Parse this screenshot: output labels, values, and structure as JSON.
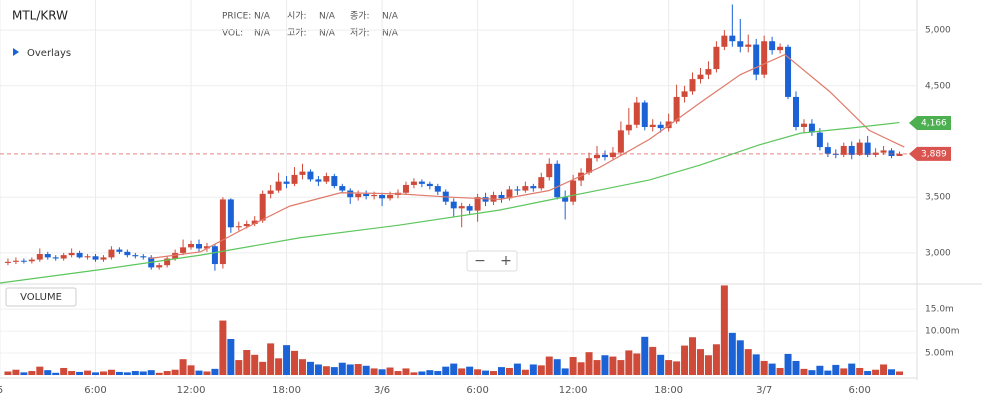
{
  "chart_data": {
    "type": "candlestick",
    "title": "MTL/KRW",
    "info": {
      "labels": [
        "PRICE:",
        "시가:",
        "종가:",
        "VOL:",
        "고가:",
        "저가:"
      ],
      "values": [
        "N/A",
        "N/A",
        "N/A",
        "N/A",
        "N/A",
        "N/A"
      ]
    },
    "overlays_label": "Overlays",
    "volume_label": "VOLUME",
    "zoom": [
      "−",
      "+"
    ],
    "colors": {
      "up": "#cf4a39",
      "down": "#1a62d6"
    },
    "x": [
      0.5,
      1,
      1.5,
      2,
      2.5,
      3,
      3.5,
      4,
      4.5,
      5,
      5.5,
      6,
      6.5,
      7,
      7.5,
      8,
      8.5,
      9,
      9.5,
      10,
      10.5,
      11,
      11.5,
      12,
      12.5,
      13,
      13.5,
      14,
      14.5,
      15,
      15.5,
      16,
      16.5,
      17,
      17.5,
      18,
      18.5,
      19,
      19.5,
      20,
      20.5,
      21,
      21.5,
      22,
      22.5,
      23,
      23.5,
      24,
      24.5,
      25,
      25.5,
      26,
      26.5,
      27,
      27.5,
      28,
      28.5,
      29,
      29.5,
      30,
      30.5,
      31,
      31.5,
      32,
      32.5,
      33,
      33.5,
      34,
      34.5,
      35,
      35.5,
      36,
      36.5,
      37,
      37.5,
      38,
      38.5,
      39,
      39.5,
      40,
      40.5,
      41,
      41.5,
      42,
      42.5,
      43,
      43.5,
      44,
      44.5,
      45,
      45.5,
      46,
      46.5,
      47,
      47.5,
      48,
      48.5,
      49,
      49.5,
      50,
      50.5,
      51,
      51.5,
      52,
      52.5,
      53,
      53.5,
      54,
      54.5,
      55,
      55.5,
      56,
      56.5
    ],
    "open": [
      2910,
      2920,
      2930,
      2925,
      2940,
      2990,
      2960,
      2950,
      2980,
      3000,
      2960,
      2970,
      2940,
      2960,
      3030,
      3010,
      2980,
      2970,
      2960,
      2870,
      2890,
      2950,
      3000,
      3050,
      3080,
      3040,
      3060,
      2900,
      3480,
      3230,
      3240,
      3260,
      3290,
      3530,
      3560,
      3640,
      3620,
      3700,
      3730,
      3660,
      3640,
      3690,
      3600,
      3560,
      3500,
      3530,
      3510,
      3520,
      3490,
      3520,
      3540,
      3610,
      3640,
      3620,
      3600,
      3550,
      3460,
      3400,
      3420,
      3380,
      3500,
      3460,
      3520,
      3490,
      3570,
      3560,
      3600,
      3580,
      3680,
      3800,
      3500,
      3460,
      3650,
      3720,
      3850,
      3880,
      3860,
      3900,
      4100,
      4150,
      4350,
      4130,
      4150,
      4120,
      4180,
      4400,
      4450,
      4560,
      4600,
      4650,
      4850,
      4950,
      4900,
      4850,
      4870,
      4600,
      4900,
      4820,
      4850,
      4400,
      4130,
      4160,
      4080,
      3950,
      3890,
      3880,
      3960,
      3880,
      3990,
      3880,
      3900,
      3920,
      3870
    ],
    "high": [
      2950,
      2960,
      2950,
      2960,
      3040,
      3010,
      2980,
      3000,
      3040,
      3020,
      2990,
      2990,
      2980,
      3060,
      3050,
      3030,
      3000,
      2990,
      2980,
      2910,
      2970,
      3030,
      3120,
      3110,
      3120,
      3090,
      3080,
      3500,
      3490,
      3280,
      3290,
      3330,
      3560,
      3610,
      3720,
      3690,
      3770,
      3800,
      3750,
      3690,
      3720,
      3710,
      3620,
      3580,
      3560,
      3560,
      3550,
      3540,
      3550,
      3570,
      3640,
      3670,
      3660,
      3640,
      3620,
      3570,
      3490,
      3450,
      3440,
      3530,
      3540,
      3550,
      3550,
      3600,
      3600,
      3640,
      3620,
      3720,
      3850,
      3830,
      3560,
      3700,
      3760,
      3900,
      3960,
      3920,
      3950,
      4180,
      4300,
      4400,
      4370,
      4200,
      4180,
      4250,
      4510,
      4500,
      4620,
      4660,
      4720,
      4900,
      5000,
      5230,
      5100,
      4960,
      4920,
      4950,
      4940,
      4880,
      4870,
      4450,
      4200,
      4200,
      4120,
      3990,
      3930,
      3990,
      4000,
      4020,
      4050,
      3940,
      3960,
      3940,
      3910
    ],
    "low": [
      2890,
      2900,
      2905,
      2905,
      2920,
      2940,
      2930,
      2930,
      2960,
      2950,
      2940,
      2920,
      2920,
      2940,
      2990,
      2960,
      2950,
      2940,
      2850,
      2850,
      2870,
      2930,
      2980,
      3030,
      3010,
      3010,
      2840,
      2860,
      3180,
      3200,
      3220,
      3240,
      3270,
      3490,
      3540,
      3580,
      3600,
      3660,
      3640,
      3600,
      3620,
      3580,
      3540,
      3440,
      3470,
      3480,
      3480,
      3420,
      3470,
      3490,
      3520,
      3580,
      3590,
      3570,
      3520,
      3430,
      3320,
      3230,
      3350,
      3280,
      3420,
      3430,
      3450,
      3470,
      3520,
      3540,
      3550,
      3560,
      3650,
      3480,
      3300,
      3430,
      3600,
      3700,
      3820,
      3830,
      3840,
      3870,
      4060,
      4120,
      4100,
      4090,
      4080,
      4090,
      4160,
      4350,
      4420,
      4520,
      4560,
      4620,
      4820,
      4850,
      4800,
      4800,
      4550,
      4570,
      4780,
      4790,
      4380,
      4100,
      4080,
      4050,
      3920,
      3860,
      3850,
      3860,
      3840,
      3870,
      3860,
      3860,
      3880,
      3850,
      3870
    ],
    "close": [
      2920,
      2930,
      2925,
      2940,
      2990,
      2960,
      2950,
      2980,
      3000,
      2960,
      2970,
      2940,
      2960,
      3030,
      3010,
      2980,
      2970,
      2960,
      2870,
      2890,
      2950,
      3000,
      3050,
      3080,
      3040,
      3060,
      2900,
      3480,
      3230,
      3240,
      3260,
      3290,
      3530,
      3560,
      3640,
      3620,
      3700,
      3730,
      3660,
      3640,
      3690,
      3600,
      3560,
      3500,
      3530,
      3510,
      3520,
      3490,
      3520,
      3540,
      3610,
      3640,
      3620,
      3600,
      3550,
      3460,
      3400,
      3420,
      3380,
      3500,
      3460,
      3520,
      3490,
      3570,
      3560,
      3600,
      3580,
      3680,
      3800,
      3500,
      3460,
      3650,
      3720,
      3850,
      3880,
      3860,
      3900,
      4100,
      4150,
      4350,
      4130,
      4150,
      4120,
      4180,
      4400,
      4450,
      4560,
      4600,
      4650,
      4850,
      4950,
      4900,
      4850,
      4870,
      4600,
      4900,
      4820,
      4850,
      4400,
      4130,
      4160,
      4080,
      3950,
      3890,
      3880,
      3960,
      3880,
      3990,
      3880,
      3900,
      3920,
      3870,
      3889
    ],
    "volume": [
      0.8,
      1.2,
      0.6,
      0.9,
      1.9,
      1.1,
      0.5,
      1.6,
      0.9,
      0.7,
      1.0,
      0.6,
      0.8,
      1.2,
      0.7,
      0.6,
      0.9,
      0.8,
      1.1,
      0.5,
      0.9,
      1.2,
      3.6,
      2.2,
      1.0,
      0.8,
      1.4,
      12.4,
      8.2,
      3.4,
      5.7,
      4.6,
      3.0,
      7.2,
      3.8,
      6.8,
      5.5,
      3.6,
      3.0,
      2.4,
      2.0,
      1.8,
      2.8,
      2.4,
      2.5,
      2.1,
      1.5,
      1.3,
      1.7,
      0.9,
      1.5,
      0.6,
      0.8,
      1.1,
      0.9,
      1.9,
      2.6,
      1.5,
      1.9,
      1.3,
      1.0,
      0.9,
      1.8,
      1.6,
      2.6,
      1.2,
      2.4,
      2.2,
      4.2,
      3.6,
      1.5,
      4.1,
      2.9,
      5.2,
      3.4,
      4.5,
      4.2,
      3.4,
      5.6,
      4.9,
      8.7,
      6.4,
      4.6,
      3.4,
      3.1,
      6.7,
      8.6,
      5.9,
      4.5,
      7.0,
      20.4,
      9.6,
      7.9,
      5.9,
      4.7,
      3.2,
      2.6,
      1.6,
      4.8,
      3.2,
      1.4,
      1.1,
      2.1,
      1.0,
      2.3,
      1.5,
      2.6,
      1.6,
      0.9,
      1.2,
      2.4,
      1.3,
      0.8
    ],
    "ma": [
      {
        "color": "#e07a6a",
        "x": [
          9.4,
          12.6,
          15.1,
          18.2,
          21.4,
          25.1,
          28.3,
          31.4,
          34.5,
          37.7,
          40.8,
          44,
          46.5,
          49.3,
          52.1,
          54.6,
          56.8
        ],
        "values": [
          2950,
          3010,
          3200,
          3420,
          3540,
          3530,
          3500,
          3480,
          3560,
          3770,
          4020,
          4350,
          4600,
          4780,
          4450,
          4100,
          3950
        ]
      },
      {
        "color": "#5cc65c",
        "x": [
          0,
          6.3,
          12.6,
          18.8,
          25.1,
          31.4,
          34.5,
          37.7,
          40.8,
          44,
          47.7,
          50.3,
          53.4,
          56.5
        ],
        "values": [
          2730,
          2850,
          2980,
          3135,
          3250,
          3385,
          3475,
          3565,
          3655,
          3790,
          3970,
          4075,
          4120,
          4170
        ]
      }
    ],
    "ma_tag": {
      "value": 4166,
      "label": "4,166",
      "color": "#4caf50"
    },
    "last_price": {
      "value": 3889,
      "label": "3,889",
      "color": "#d9534f"
    },
    "xlim": [
      0,
      57.6
    ],
    "ylim": [
      2730,
      5270
    ],
    "yticks": [
      {
        "value": 3000,
        "label": "3,000"
      },
      {
        "value": 3500,
        "label": "3,500"
      },
      {
        "value": 4500,
        "label": "4,500"
      },
      {
        "value": 5000,
        "label": "5,000"
      }
    ],
    "xticks": [
      {
        "value": 0,
        "label": "5"
      },
      {
        "value": 6,
        "label": "6:00"
      },
      {
        "value": 12,
        "label": "12:00"
      },
      {
        "value": 18,
        "label": "18:00"
      },
      {
        "value": 24,
        "label": "3/6"
      },
      {
        "value": 30,
        "label": "6:00"
      },
      {
        "value": 36,
        "label": "12:00"
      },
      {
        "value": 42,
        "label": "18:00"
      },
      {
        "value": 48,
        "label": "3/7"
      },
      {
        "value": 54,
        "label": "6:00"
      }
    ],
    "volume_ylim": [
      0,
      20.5
    ],
    "volume_yticks": [
      {
        "value": 5,
        "label": "5.00m"
      },
      {
        "value": 10,
        "label": "10.00m"
      },
      {
        "value": 15,
        "label": "15.0m"
      }
    ],
    "grid": true
  }
}
